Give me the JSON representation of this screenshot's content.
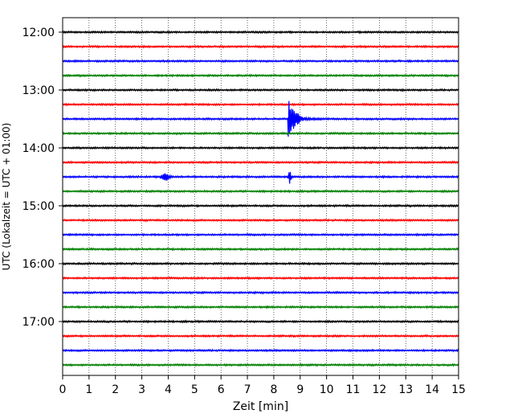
{
  "chart_data": {
    "type": "line",
    "xlabel": "Zeit  [min]",
    "ylabel": "UTC (Lokalzeit = UTC + 01:00)",
    "xlim": [
      0,
      15
    ],
    "x_ticks": [
      "0",
      "1",
      "2",
      "3",
      "4",
      "5",
      "6",
      "7",
      "8",
      "9",
      "10",
      "11",
      "12",
      "13",
      "14",
      "15"
    ],
    "y_ticks": [
      "12:00",
      "13:00",
      "14:00",
      "15:00",
      "16:00",
      "17:00"
    ],
    "grid": "vertical dotted",
    "trace_interval_minutes": 15,
    "trace_count": 24,
    "trace_colors": [
      "#000000",
      "#ff0000",
      "#0000ff",
      "#008000"
    ],
    "events": [
      {
        "row_time": "13:30",
        "x_min": 8.6,
        "peak_amplitude": 5.0,
        "shape": "large-burst",
        "color": "#0000ff"
      },
      {
        "row_time": "14:30",
        "x_min": 3.9,
        "peak_amplitude": 1.0,
        "shape": "burst",
        "color": "#0000ff"
      },
      {
        "row_time": "14:30",
        "x_min": 8.6,
        "peak_amplitude": 2.3,
        "shape": "spike",
        "color": "#0000ff"
      }
    ]
  }
}
